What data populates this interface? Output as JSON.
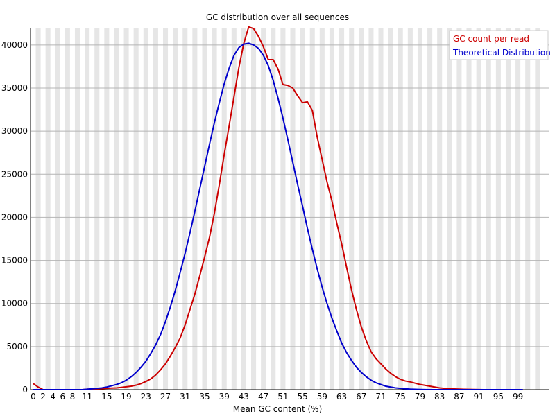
{
  "chart_data": {
    "type": "line",
    "title": "GC distribution over all sequences",
    "xlabel": "Mean GC content (%)",
    "ylabel": "",
    "xlim": [
      0,
      100
    ],
    "ylim": [
      0,
      42000
    ],
    "grid": true,
    "legend_position": "top-right",
    "y_ticks": [
      "0",
      "5000",
      "10000",
      "15000",
      "20000",
      "25000",
      "30000",
      "35000",
      "40000"
    ],
    "x_tick_labels": [
      "0",
      "2",
      "4",
      "6",
      "8",
      "11",
      "15",
      "19",
      "23",
      "27",
      "31",
      "35",
      "39",
      "43",
      "47",
      "51",
      "55",
      "59",
      "63",
      "67",
      "71",
      "75",
      "79",
      "83",
      "87",
      "91",
      "95",
      "99"
    ],
    "series": [
      {
        "name": "GC count per read",
        "color": "#cc0000",
        "x": [
          0,
          1,
          2,
          3,
          4,
          5,
          6,
          7,
          8,
          9,
          10,
          11,
          12,
          13,
          14,
          15,
          16,
          17,
          18,
          19,
          20,
          21,
          22,
          23,
          24,
          25,
          26,
          27,
          28,
          29,
          30,
          31,
          32,
          33,
          34,
          35,
          36,
          37,
          38,
          39,
          40,
          41,
          42,
          43,
          44,
          45,
          46,
          47,
          48,
          49,
          50,
          51,
          52,
          53,
          54,
          55,
          56,
          57,
          58,
          59,
          60,
          61,
          62,
          63,
          64,
          65,
          66,
          67,
          68,
          69,
          70,
          71,
          72,
          73,
          74,
          75,
          76,
          77,
          78,
          79,
          80,
          81,
          82,
          83,
          84,
          85,
          86,
          87,
          88,
          89,
          90,
          91,
          92,
          93,
          94,
          95,
          96,
          97,
          98,
          99,
          100
        ],
        "y": [
          700,
          300,
          0,
          0,
          0,
          0,
          0,
          0,
          0,
          0,
          0,
          50,
          70,
          90,
          110,
          150,
          180,
          200,
          260,
          330,
          400,
          520,
          700,
          950,
          1250,
          1700,
          2300,
          3000,
          3900,
          4900,
          6000,
          7500,
          9300,
          11100,
          13200,
          15400,
          17700,
          20500,
          23800,
          27300,
          30600,
          34000,
          37400,
          40200,
          42100,
          41900,
          41000,
          39800,
          38300,
          38300,
          37200,
          35400,
          35300,
          35000,
          34100,
          33300,
          33400,
          32400,
          29300,
          26700,
          24100,
          21900,
          19300,
          16900,
          14200,
          11600,
          9300,
          7300,
          5700,
          4400,
          3600,
          3000,
          2400,
          1900,
          1500,
          1200,
          1000,
          900,
          750,
          600,
          500,
          400,
          300,
          200,
          150,
          100,
          80,
          60,
          40,
          30,
          20,
          10,
          0,
          0,
          0,
          0,
          0,
          0,
          0,
          0,
          0
        ]
      },
      {
        "name": "Theoretical Distribution",
        "color": "#0000cc",
        "x": [
          0,
          1,
          2,
          3,
          4,
          5,
          6,
          7,
          8,
          9,
          10,
          11,
          12,
          13,
          14,
          15,
          16,
          17,
          18,
          19,
          20,
          21,
          22,
          23,
          24,
          25,
          26,
          27,
          28,
          29,
          30,
          31,
          32,
          33,
          34,
          35,
          36,
          37,
          38,
          39,
          40,
          41,
          42,
          43,
          44,
          45,
          46,
          47,
          48,
          49,
          50,
          51,
          52,
          53,
          54,
          55,
          56,
          57,
          58,
          59,
          60,
          61,
          62,
          63,
          64,
          65,
          66,
          67,
          68,
          69,
          70,
          71,
          72,
          73,
          74,
          75,
          76,
          77,
          78,
          79,
          80,
          81,
          82,
          83,
          84,
          85,
          86,
          87,
          88,
          89,
          90,
          91,
          92,
          93,
          94,
          95,
          96,
          97,
          98,
          99,
          100
        ],
        "y": [
          0,
          0,
          0,
          0,
          0,
          0,
          0,
          0,
          0,
          0,
          0,
          50,
          100,
          150,
          200,
          300,
          450,
          600,
          800,
          1100,
          1500,
          2000,
          2600,
          3300,
          4200,
          5200,
          6400,
          7900,
          9600,
          11500,
          13600,
          15800,
          18200,
          20700,
          23300,
          25900,
          28500,
          31000,
          33300,
          35500,
          37300,
          38800,
          39700,
          40100,
          40200,
          40000,
          39600,
          38800,
          37600,
          35900,
          33800,
          31500,
          29000,
          26400,
          23800,
          21300,
          18700,
          16300,
          14000,
          11900,
          10000,
          8300,
          6800,
          5400,
          4300,
          3400,
          2600,
          2000,
          1500,
          1100,
          800,
          600,
          400,
          300,
          200,
          150,
          100,
          60,
          40,
          20,
          10,
          0,
          0,
          0,
          0,
          0,
          0,
          0,
          0,
          0,
          0,
          0,
          0,
          0,
          0,
          0,
          0,
          0,
          0,
          0,
          0
        ]
      }
    ]
  }
}
